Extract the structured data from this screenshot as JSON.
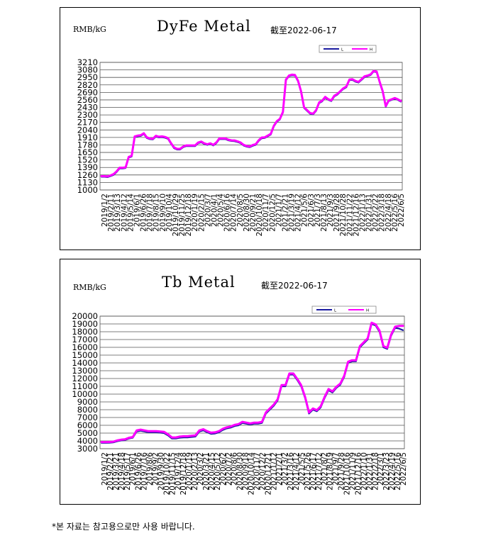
{
  "note": "*본 자료는 참고용으로만 사용 바랍니다.",
  "chart_data": [
    {
      "type": "line",
      "title": "DyFe Metal",
      "subtitle": "截至2022-06-17",
      "ylabel": "RMB/kG",
      "ylim": [
        1000,
        3210
      ],
      "yticks": [
        "3210",
        "3080",
        "2950",
        "2820",
        "2690",
        "2560",
        "2430",
        "2300",
        "2170",
        "2040",
        "1910",
        "1780",
        "1650",
        "1520",
        "1390",
        "1260",
        "1130",
        "1000"
      ],
      "xticks": [
        "2019/1/2",
        "2019/2/11",
        "2019/3/13",
        "2019/4/12",
        "2019/5/14",
        "2019/6/1",
        "2019/6/26",
        "2019/7/18",
        "2019/8/15",
        "2019/9/10",
        "2019/10/4",
        "2019/10/29",
        "2019/11/25",
        "2019/12/18",
        "2020/1/19",
        "2020/2/15",
        "2020/3/7",
        "2020/4/1",
        "2020/5/4",
        "2020/6/16",
        "2020/7/14",
        "2020/8/5",
        "2020/8/30",
        "2020/9/21",
        "2020/10/18",
        "2020/11/7",
        "2020/12/5",
        "2021/1/7",
        "2021/2/21",
        "2021/3/19",
        "2021/4/12",
        "2021/5/6",
        "2021/6/3",
        "2021/7/3",
        "2021/8/13",
        "2021/9/3",
        "2021/9/28",
        "2021/10/28",
        "2021/11/22",
        "2021/12/16",
        "2022/1/13",
        "2022/1/31",
        "2022/2/22",
        "2022/3/18",
        "2022/4/18",
        "2022/5/16",
        "2022/6/5"
      ],
      "legend": [
        "L",
        "H"
      ],
      "legend_position": "top-right",
      "colors": [
        "#1a1aa0",
        "#ff00ff"
      ],
      "series": [
        {
          "name": "L",
          "values": [
            1228,
            1228,
            1222,
            1240,
            1262,
            1310,
            1372,
            1372,
            1380,
            1560,
            1580,
            1915,
            1930,
            1935,
            1970,
            1900,
            1880,
            1875,
            1925,
            1910,
            1915,
            1905,
            1885,
            1800,
            1725,
            1700,
            1700,
            1740,
            1760,
            1760,
            1760,
            1760,
            1810,
            1825,
            1795,
            1780,
            1795,
            1770,
            1810,
            1880,
            1880,
            1880,
            1858,
            1848,
            1845,
            1830,
            1810,
            1770,
            1750,
            1740,
            1765,
            1780,
            1850,
            1895,
            1900,
            1930,
            1960,
            2100,
            2180,
            2220,
            2340,
            2900,
            2970,
            2985,
            2980,
            2880,
            2700,
            2420,
            2370,
            2320,
            2310,
            2370,
            2505,
            2535,
            2600,
            2560,
            2540,
            2620,
            2650,
            2700,
            2750,
            2780,
            2900,
            2905,
            2875,
            2860,
            2905,
            2955,
            2970,
            2990,
            3050,
            3040,
            2860,
            2700,
            2440,
            2540,
            2560,
            2580,
            2560,
            2530
          ]
        },
        {
          "name": "H",
          "values": [
            1240,
            1240,
            1234,
            1252,
            1275,
            1322,
            1385,
            1385,
            1392,
            1572,
            1592,
            1928,
            1942,
            1948,
            1982,
            1912,
            1892,
            1888,
            1938,
            1922,
            1928,
            1918,
            1898,
            1812,
            1738,
            1712,
            1712,
            1752,
            1772,
            1772,
            1772,
            1772,
            1822,
            1838,
            1808,
            1792,
            1808,
            1782,
            1822,
            1892,
            1892,
            1892,
            1870,
            1860,
            1858,
            1842,
            1822,
            1782,
            1762,
            1752,
            1778,
            1792,
            1862,
            1908,
            1912,
            1942,
            1972,
            2112,
            2192,
            2232,
            2352,
            2912,
            2982,
            2998,
            2992,
            2892,
            2712,
            2432,
            2382,
            2332,
            2322,
            2382,
            2518,
            2548,
            2612,
            2572,
            2552,
            2632,
            2662,
            2712,
            2762,
            2792,
            2912,
            2918,
            2888,
            2872,
            2918,
            2968,
            2982,
            3002,
            3062,
            3052,
            2872,
            2712,
            2452,
            2552,
            2572,
            2592,
            2572,
            2542
          ]
        }
      ]
    },
    {
      "type": "line",
      "title": "Tb Metal",
      "subtitle": "截至2022-06-17",
      "ylabel": "RMB/kG",
      "ylim": [
        3000,
        20000
      ],
      "yticks": [
        "20000",
        "19000",
        "18000",
        "17000",
        "16000",
        "15000",
        "14000",
        "13000",
        "12000",
        "11000",
        "10000",
        "9000",
        "8000",
        "7000",
        "6000",
        "5000",
        "4000",
        "3000"
      ],
      "xticks": [
        "2019/1/2",
        "2019/2/21",
        "2019/3/21",
        "2019/4/18",
        "2019/5/17",
        "2019/6/1",
        "2019/6/26",
        "2019/7/16",
        "2019/8/6",
        "2019/9/2",
        "2019/9/30",
        "2019/10/22",
        "2019/11/15",
        "2019/12/4",
        "2019/12/18",
        "2020/1/19",
        "2020/2/13",
        "2020/3/2",
        "2020/3/21",
        "2020/4/15",
        "2020/5/12",
        "2020/6/2",
        "2020/7/2",
        "2020/8/6",
        "2020/8/30",
        "2020/9/18",
        "2020/10/14",
        "2020/11/7",
        "2020/12/2",
        "2020/12/21",
        "2021/1/12",
        "2021/2/1",
        "2021/3/2",
        "2021/3/16",
        "2021/4/12",
        "2021/5/5",
        "2021/5/26",
        "2021/6/17",
        "2021/7/12",
        "2021/8/2",
        "2021/8/19",
        "2021/9/7",
        "2021/9/28",
        "2021/10/16",
        "2021/11/9",
        "2021/12/16",
        "2022/1/10",
        "2022/1/31",
        "2022/2/18",
        "2022/3/1",
        "2022/3/23",
        "2022/4/19",
        "2022/5/16",
        "2022/6/5"
      ],
      "legend": [
        "L",
        "H"
      ],
      "legend_position": "top-right",
      "colors": [
        "#1a1aa0",
        "#ff00ff"
      ],
      "series": [
        {
          "name": "L",
          "values": [
            3750,
            3750,
            3760,
            3800,
            3950,
            4050,
            4100,
            4300,
            4400,
            5200,
            5300,
            5200,
            5100,
            5100,
            5100,
            5050,
            5000,
            4700,
            4300,
            4300,
            4400,
            4450,
            4450,
            4500,
            4550,
            5200,
            5350,
            5100,
            4900,
            4950,
            5100,
            5400,
            5600,
            5700,
            5900,
            6000,
            6300,
            6200,
            6100,
            6200,
            6200,
            6300,
            7500,
            8000,
            8500,
            9200,
            11000,
            11000,
            12500,
            12500,
            11800,
            11000,
            9500,
            7500,
            8000,
            7800,
            8300,
            9500,
            10500,
            10200,
            10800,
            11200,
            12200,
            14000,
            14200,
            14200,
            16000,
            16500,
            17000,
            19000,
            18800,
            18000,
            16000,
            15800,
            17500,
            18500,
            18400,
            18200
          ]
        },
        {
          "name": "H",
          "values": [
            3850,
            3850,
            3860,
            3900,
            4050,
            4150,
            4200,
            4400,
            4500,
            5350,
            5450,
            5350,
            5250,
            5250,
            5250,
            5200,
            5150,
            4850,
            4450,
            4450,
            4550,
            4600,
            4600,
            4650,
            4700,
            5350,
            5500,
            5250,
            5050,
            5100,
            5250,
            5550,
            5750,
            5850,
            6050,
            6150,
            6450,
            6350,
            6250,
            6350,
            6350,
            6450,
            7650,
            8150,
            8650,
            9350,
            11150,
            11150,
            12650,
            12650,
            11950,
            11150,
            9650,
            7650,
            8150,
            7950,
            8450,
            9650,
            10650,
            10350,
            10950,
            11350,
            12350,
            14150,
            14350,
            14350,
            16150,
            16650,
            17150,
            19150,
            18950,
            18150,
            16150,
            15950,
            17650,
            18650,
            18750,
            18750
          ]
        }
      ]
    }
  ]
}
